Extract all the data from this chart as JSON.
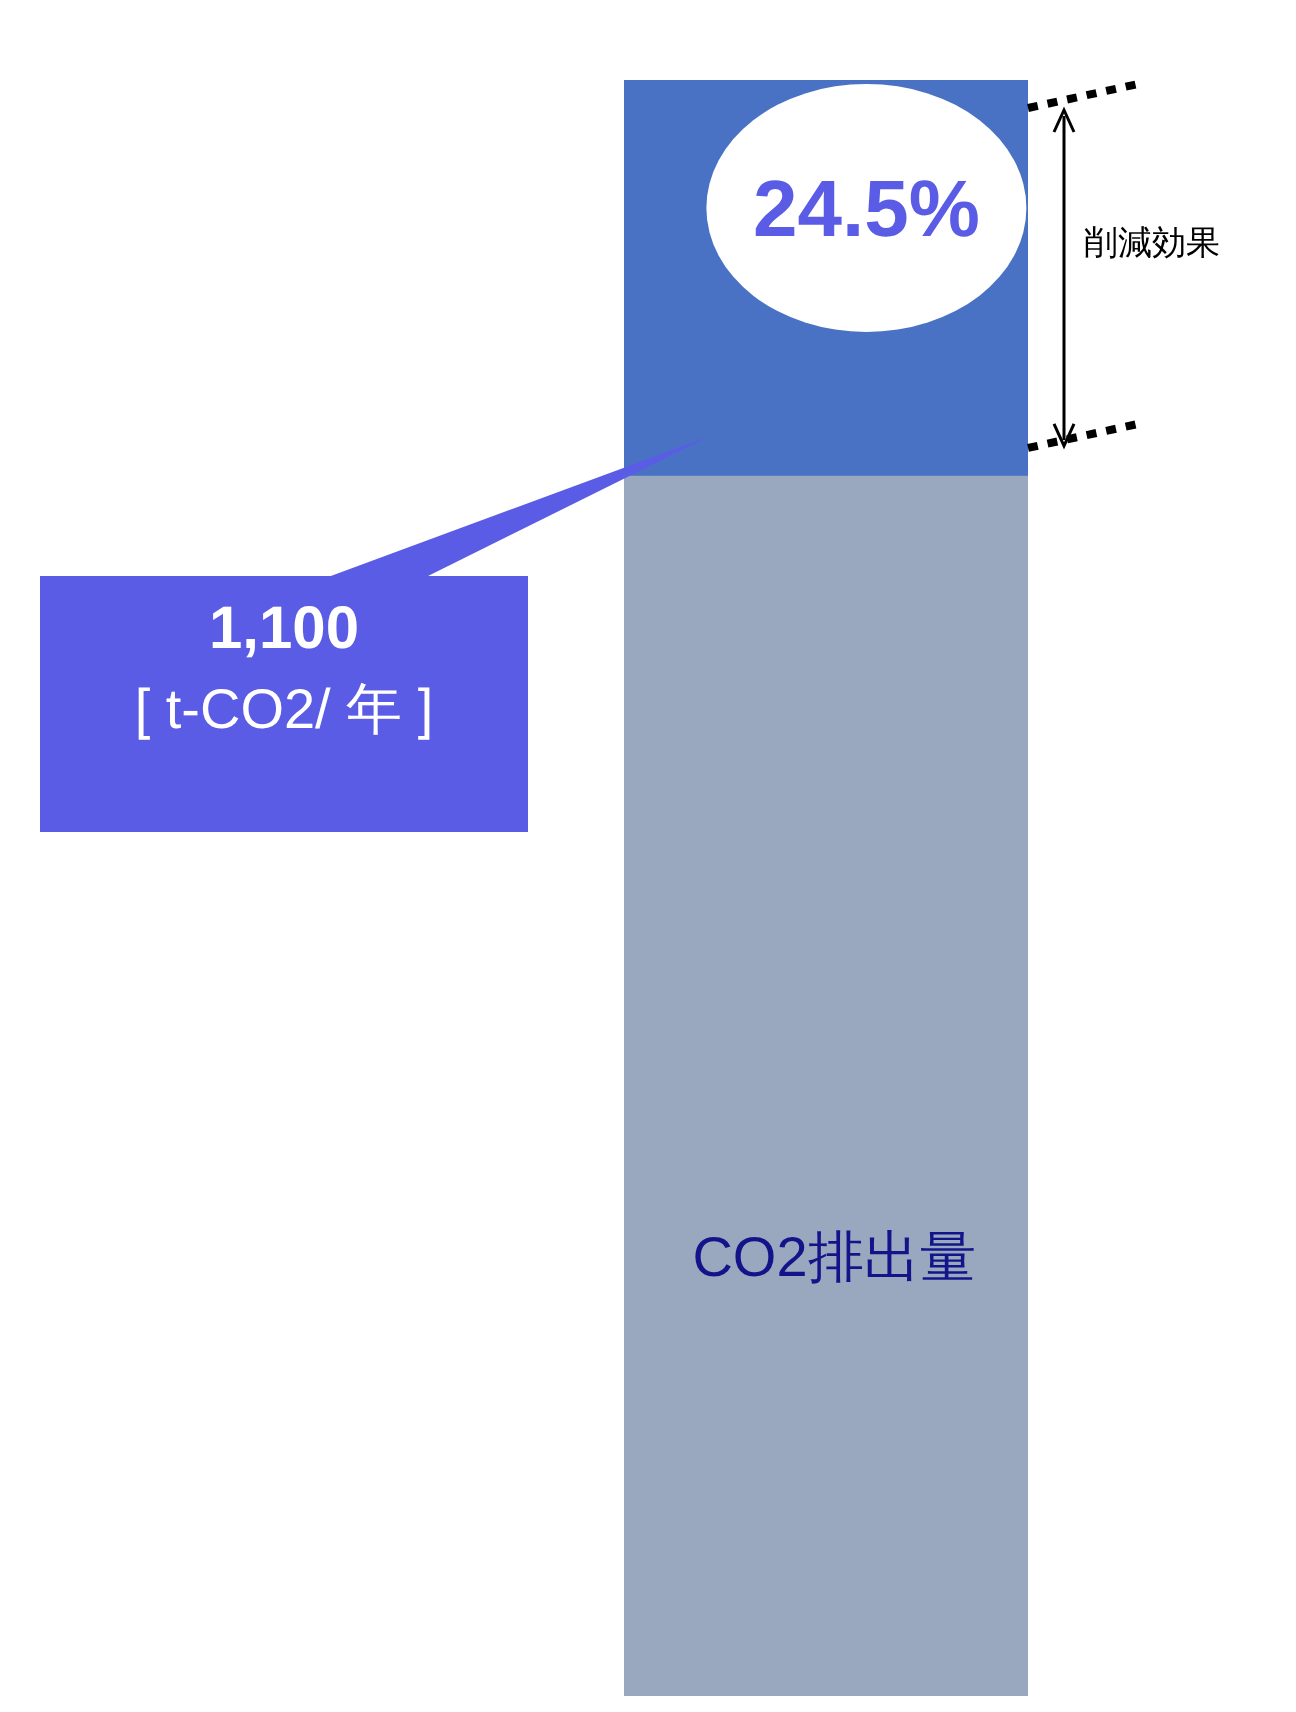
{
  "chart_data": {
    "type": "bar",
    "stacked": true,
    "categories": [
      null
    ],
    "ylim": [
      0,
      100
    ],
    "tick_labels": false,
    "series": [
      {
        "name": "CO2排出量",
        "color": "#9aa8bf",
        "values": [
          75.5
        ]
      },
      {
        "name": "削減効果",
        "color": "#4a72c4",
        "values": [
          24.5
        ],
        "value_labels": [
          "24.5%"
        ]
      }
    ],
    "annotations": [
      "1,100",
      "[ t-CO2/ 年 ]"
    ]
  }
}
